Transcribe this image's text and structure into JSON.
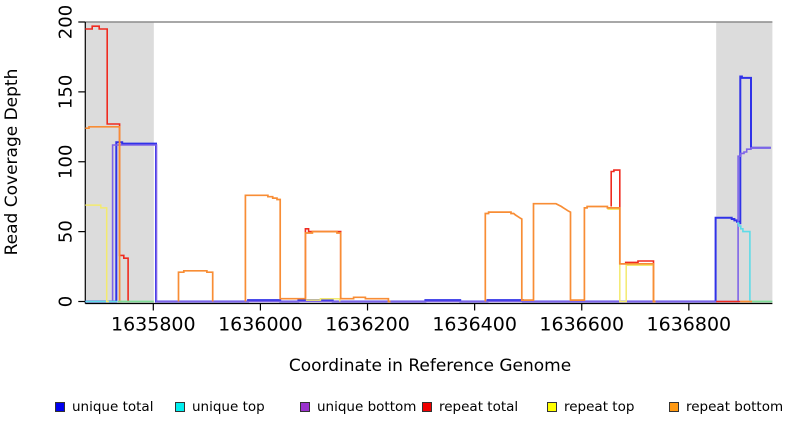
{
  "chart_data": {
    "type": "line",
    "title": "",
    "xlabel": "Coordinate in Reference Genome",
    "ylabel": "Read Coverage Depth",
    "xlim": [
      1635673,
      1636956
    ],
    "ylim": [
      0,
      200
    ],
    "grid": false,
    "top_rule_value": 200,
    "xticks": [
      {
        "value": 1635800,
        "label": "1635800"
      },
      {
        "value": 1636000,
        "label": "1636000"
      },
      {
        "value": 1636200,
        "label": "1636200"
      },
      {
        "value": 1636400,
        "label": "1636400"
      },
      {
        "value": 1636600,
        "label": "1636600"
      },
      {
        "value": 1636800,
        "label": "1636800"
      }
    ],
    "yticks": [
      {
        "value": 0,
        "label": "0"
      },
      {
        "value": 50,
        "label": "50"
      },
      {
        "value": 100,
        "label": "100"
      },
      {
        "value": 150,
        "label": "150"
      },
      {
        "value": 200,
        "label": "200"
      }
    ],
    "highlight_bands": [
      {
        "x1": 1635673,
        "x2": 1635801,
        "color": "#dcdcdc"
      },
      {
        "x1": 1636851,
        "x2": 1636956,
        "color": "#dcdcdc"
      }
    ],
    "legend_position": "bottom",
    "legend": [
      {
        "label": "unique total",
        "color": "#0000ee"
      },
      {
        "label": "unique top",
        "color": "#00eeee"
      },
      {
        "label": "unique bottom",
        "color": "#9a32cd"
      },
      {
        "label": "repeat total",
        "color": "#ee0000"
      },
      {
        "label": "repeat top",
        "color": "#ffff00"
      },
      {
        "label": "repeat bottom",
        "color": "#ff9912"
      }
    ],
    "series": [
      {
        "name": "unique total",
        "color": "#3032e8",
        "width": 2,
        "in_legend": true,
        "paths": [
          [
            [
              1635673,
              0
            ],
            [
              1635731,
              0
            ],
            [
              1635731,
              114
            ],
            [
              1635742,
              114
            ],
            [
              1635742,
              113
            ],
            [
              1635805,
              113
            ],
            [
              1635805,
              0
            ],
            [
              1635977,
              0
            ],
            [
              1635977,
              1
            ],
            [
              1636037,
              1
            ],
            [
              1636037,
              0
            ],
            [
              1636071,
              0
            ],
            [
              1636071,
              1
            ],
            [
              1636135,
              1
            ],
            [
              1636135,
              0
            ],
            [
              1636308,
              0
            ],
            [
              1636308,
              1
            ],
            [
              1636373,
              1
            ],
            [
              1636373,
              0
            ],
            [
              1636424,
              0
            ],
            [
              1636424,
              1
            ],
            [
              1636490,
              1
            ],
            [
              1636490,
              0
            ],
            [
              1636850,
              0
            ],
            [
              1636850,
              60
            ],
            [
              1636880,
              60
            ],
            [
              1636880,
              59
            ],
            [
              1636885,
              59
            ],
            [
              1636885,
              58
            ],
            [
              1636890,
              58
            ],
            [
              1636890,
              57
            ],
            [
              1636894,
              57
            ],
            [
              1636894,
              56
            ],
            [
              1636896,
              56
            ],
            [
              1636896,
              161
            ],
            [
              1636899,
              161
            ],
            [
              1636899,
              160
            ],
            [
              1636916,
              160
            ],
            [
              1636916,
              110
            ],
            [
              1636953,
              110
            ]
          ]
        ]
      },
      {
        "name": "unique bottom",
        "color": "#7e63e8",
        "width": 1.6,
        "in_legend": true,
        "paths": [
          [
            [
              1635724,
              0
            ],
            [
              1635724,
              112
            ],
            [
              1635806,
              112
            ],
            [
              1635806,
              0
            ],
            [
              1636892,
              0
            ],
            [
              1636892,
              104
            ],
            [
              1636897,
              104
            ],
            [
              1636897,
              106
            ],
            [
              1636903,
              106
            ],
            [
              1636903,
              107
            ],
            [
              1636908,
              107
            ],
            [
              1636908,
              109
            ],
            [
              1636916,
              109
            ],
            [
              1636916,
              110
            ],
            [
              1636953,
              110
            ]
          ]
        ]
      },
      {
        "name": "unique top",
        "color": "#5fdbe8",
        "width": 1.6,
        "in_legend": true,
        "paths": [
          [
            [
              1635673,
              0
            ],
            [
              1635733,
              0
            ]
          ],
          [
            [
              1636890,
              56
            ],
            [
              1636893,
              56
            ],
            [
              1636893,
              54
            ],
            [
              1636897,
              54
            ],
            [
              1636897,
              52
            ],
            [
              1636901,
              52
            ],
            [
              1636901,
              50
            ],
            [
              1636914,
              50
            ],
            [
              1636914,
              0
            ],
            [
              1636918,
              0
            ]
          ]
        ]
      },
      {
        "name": "repeat total",
        "color": "#ef2b20",
        "width": 1.6,
        "in_legend": true,
        "paths": [
          [
            [
              1635673,
              195
            ],
            [
              1635686,
              195
            ],
            [
              1635686,
              197
            ],
            [
              1635699,
              197
            ],
            [
              1635699,
              195
            ],
            [
              1635714,
              195
            ],
            [
              1635714,
              127
            ],
            [
              1635737,
              127
            ],
            [
              1635737,
              33
            ],
            [
              1635745,
              33
            ],
            [
              1635745,
              31
            ],
            [
              1635753,
              31
            ],
            [
              1635753,
              0
            ],
            [
              1635756,
              0
            ]
          ],
          [
            [
              1636084,
              2
            ],
            [
              1636084,
              52
            ],
            [
              1636090,
              52
            ],
            [
              1636090,
              50
            ],
            [
              1636150,
              50
            ],
            [
              1636150,
              2
            ],
            [
              1636153,
              2
            ]
          ],
          [
            [
              1636655,
              68
            ],
            [
              1636655,
              93
            ],
            [
              1636660,
              93
            ],
            [
              1636660,
              94
            ],
            [
              1636671,
              94
            ],
            [
              1636671,
              27
            ],
            [
              1636682,
              27
            ],
            [
              1636682,
              28
            ],
            [
              1636705,
              28
            ],
            [
              1636705,
              29
            ],
            [
              1636734,
              29
            ],
            [
              1636734,
              0
            ],
            [
              1636737,
              0
            ]
          ],
          [
            [
              1636851,
              0
            ],
            [
              1636896,
              0
            ]
          ]
        ]
      },
      {
        "name": "repeat top",
        "color": "#f3ea6f",
        "width": 1.5,
        "in_legend": true,
        "paths": [
          [
            [
              1635673,
              69
            ],
            [
              1635702,
              69
            ],
            [
              1635702,
              67
            ],
            [
              1635713,
              67
            ],
            [
              1635713,
              0
            ],
            [
              1635717,
              0
            ]
          ],
          [
            [
              1636085,
              1
            ],
            [
              1636112,
              1
            ],
            [
              1636112,
              2
            ],
            [
              1636148,
              2
            ],
            [
              1636148,
              0
            ]
          ],
          [
            [
              1636648,
              66
            ],
            [
              1636671,
              66
            ],
            [
              1636671,
              0
            ],
            [
              1636683,
              0
            ],
            [
              1636683,
              26
            ],
            [
              1636734,
              26
            ],
            [
              1636734,
              0
            ]
          ]
        ]
      },
      {
        "name": "repeat bottom",
        "color": "#f88d35",
        "width": 1.7,
        "in_legend": true,
        "paths": [
          [
            [
              1635673,
              124
            ],
            [
              1635680,
              124
            ],
            [
              1635680,
              125
            ],
            [
              1635737,
              125
            ],
            [
              1635737,
              0
            ],
            [
              1635741,
              0
            ]
          ],
          [
            [
              1635847,
              0
            ],
            [
              1635847,
              21
            ],
            [
              1635857,
              21
            ],
            [
              1635857,
              22
            ],
            [
              1635900,
              22
            ],
            [
              1635900,
              21
            ],
            [
              1635911,
              21
            ],
            [
              1635911,
              0
            ]
          ],
          [
            [
              1635972,
              0
            ],
            [
              1635972,
              76
            ],
            [
              1636014,
              76
            ],
            [
              1636014,
              75
            ],
            [
              1636023,
              75
            ],
            [
              1636023,
              74
            ],
            [
              1636031,
              74
            ],
            [
              1636031,
              73
            ],
            [
              1636037,
              73
            ],
            [
              1636037,
              2
            ],
            [
              1636084,
              2
            ],
            [
              1636084,
              49
            ],
            [
              1636097,
              49
            ],
            [
              1636097,
              50
            ],
            [
              1636143,
              50
            ],
            [
              1636143,
              49
            ],
            [
              1636150,
              49
            ],
            [
              1636150,
              2
            ],
            [
              1636174,
              2
            ],
            [
              1636174,
              3
            ],
            [
              1636196,
              3
            ],
            [
              1636196,
              2
            ],
            [
              1636239,
              2
            ],
            [
              1636239,
              0
            ],
            [
              1636243,
              0
            ]
          ],
          [
            [
              1636420,
              0
            ],
            [
              1636420,
              63
            ],
            [
              1636426,
              63
            ],
            [
              1636426,
              64
            ],
            [
              1636468,
              64
            ],
            [
              1636468,
              63
            ],
            [
              1636473,
              63
            ],
            [
              1636476,
              62
            ],
            [
              1636480,
              61
            ],
            [
              1636484,
              60
            ],
            [
              1636488,
              59
            ],
            [
              1636488,
              1
            ],
            [
              1636510,
              1
            ],
            [
              1636510,
              70
            ],
            [
              1636552,
              70
            ],
            [
              1636557,
              69
            ],
            [
              1636562,
              68
            ],
            [
              1636566,
              67
            ],
            [
              1636570,
              66
            ],
            [
              1636574,
              65
            ],
            [
              1636579,
              64
            ],
            [
              1636579,
              1
            ],
            [
              1636605,
              1
            ],
            [
              1636605,
              67
            ],
            [
              1636610,
              67
            ],
            [
              1636610,
              68
            ],
            [
              1636648,
              68
            ],
            [
              1636648,
              67
            ],
            [
              1636671,
              67
            ],
            [
              1636671,
              27
            ],
            [
              1636734,
              27
            ],
            [
              1636734,
              0
            ],
            [
              1636738,
              0
            ]
          ],
          [
            [
              1636896,
              0
            ],
            [
              1636918,
              0
            ]
          ]
        ]
      },
      {
        "name": "baseline green segment",
        "color": "#7fdc96",
        "width": 1.7,
        "in_legend": false,
        "paths": [
          [
            [
              1635734,
              0
            ],
            [
              1635801,
              0
            ]
          ],
          [
            [
              1636918,
              0
            ],
            [
              1636956,
              0
            ]
          ]
        ]
      }
    ]
  }
}
